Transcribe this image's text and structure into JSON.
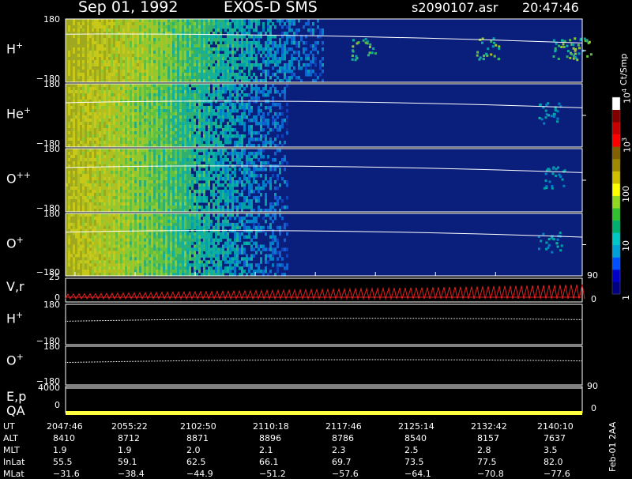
{
  "header": {
    "date": "Sep 01, 1992",
    "instrument": "EXOS-D SMS",
    "file": "s2090107.asr",
    "time": "20:47:46"
  },
  "chart_data": {
    "type": "heatmap",
    "panels": [
      {
        "id": "H+",
        "label": "H",
        "sup": "+",
        "y_top": "180",
        "y_bot": "−180",
        "ylim": [
          -180,
          180
        ],
        "data_fade": 0.5,
        "patches": [
          0.58,
          0.82,
          0.97,
          1.0
        ]
      },
      {
        "id": "He+",
        "label": "He",
        "sup": "+",
        "y_top": "180",
        "y_bot": "−180",
        "ylim": [
          -180,
          180
        ],
        "data_fade": 0.43,
        "patches": [
          0.94
        ]
      },
      {
        "id": "O++",
        "label": "O",
        "sup": "++",
        "y_top": "180",
        "y_bot": "−180",
        "ylim": [
          -180,
          180
        ],
        "data_fade": 0.43,
        "patches": [
          0.95
        ]
      },
      {
        "id": "O+",
        "label": "O",
        "sup": "+",
        "y_top": "180",
        "y_bot": "−180",
        "ylim": [
          -180,
          180
        ],
        "data_fade": 0.43,
        "patches": [
          0.94
        ]
      }
    ],
    "colorbar": {
      "unit": "Ct/Smp",
      "ticks": [
        {
          "label": "1",
          "level": 0
        },
        {
          "label": "10",
          "level": 1
        },
        {
          "label": "100",
          "level": 2
        },
        {
          "label": "10",
          "sup": "3",
          "level": 3
        },
        {
          "label": "10",
          "sup": "4",
          "level": 4
        }
      ],
      "colors": [
        "#000080",
        "#0000c8",
        "#0050ff",
        "#00a0d8",
        "#00c8c8",
        "#00b070",
        "#30c030",
        "#90d820",
        "#ffff00",
        "#d0c000",
        "#a08800",
        "#806000",
        "#ff0000",
        "#c80000",
        "#800000",
        "#ffffff"
      ]
    },
    "velocity_panel": {
      "label": "V,r",
      "y_top": "25",
      "y_zero": "0",
      "right_top": "90",
      "right_bot": "0"
    },
    "orbit_panels": [
      {
        "label": "H",
        "sup": "+",
        "y_top": "180",
        "y_bot": "−180"
      },
      {
        "label": "O",
        "sup": "+",
        "y_top": "180",
        "y_bot": "−180"
      }
    ],
    "ep_panel": {
      "label_ep": "E,p",
      "label_qa": "QA",
      "y_top": "4000",
      "y_bot": "0",
      "right_top": "90",
      "right_bot": "0"
    },
    "x_axis": {
      "rows": [
        {
          "name": "UT",
          "values": [
            "2047:46",
            "2055:22",
            "2102:50",
            "2110:18",
            "2117:46",
            "2125:14",
            "2132:42",
            "2140:10"
          ]
        },
        {
          "name": "ALT",
          "values": [
            "8410",
            "8712",
            "8871",
            "8896",
            "8786",
            "8540",
            "8157",
            "7637"
          ]
        },
        {
          "name": "MLT",
          "values": [
            "1.9",
            "1.9",
            "2.0",
            "2.1",
            "2.3",
            "2.5",
            "2.8",
            "3.5"
          ]
        },
        {
          "name": "InLat",
          "values": [
            "55.5",
            "59.1",
            "62.5",
            "66.1",
            "69.7",
            "73.5",
            "77.5",
            "82.0"
          ]
        },
        {
          "name": "MLat",
          "values": [
            "−31.6",
            "−38.4",
            "−44.9",
            "−51.2",
            "−57.6",
            "−64.1",
            "−70.8",
            "−77.6"
          ]
        }
      ]
    },
    "side_note": "Feb-01 2AA"
  }
}
